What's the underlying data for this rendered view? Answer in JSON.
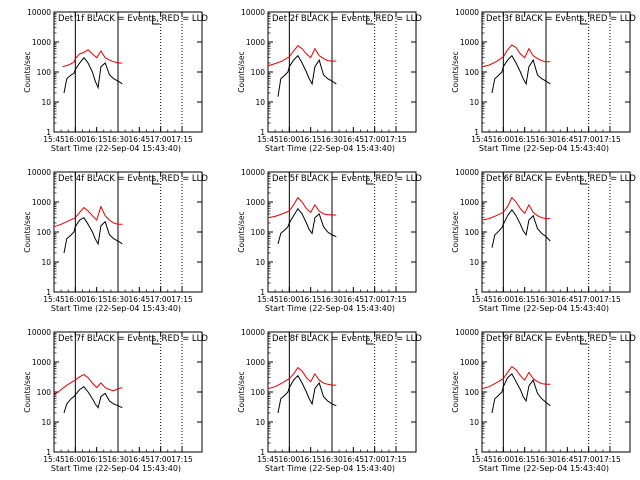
{
  "chart_data": [
    {
      "type": "line",
      "title": "Det 1f BLACK = Events, RED = LLD",
      "xlabel": "Start Time (22-Sep-04 15:43:40)",
      "ylabel": "Counts/sec",
      "x_ticks": [
        "15:45",
        "16:00",
        "16:15",
        "16:30",
        "16:45",
        "17:00",
        "17:15"
      ],
      "y_ticks": [
        "1",
        "10",
        "100",
        "1000",
        "10000"
      ],
      "ylim": [
        1,
        10000
      ],
      "y_scale": "log",
      "vlines_solid": [
        "16:00",
        "16:30"
      ],
      "vlines_dotted": [
        "17:00",
        "17:15"
      ],
      "series": [
        {
          "name": "LLD",
          "color": "#e00000",
          "x": [
            "15:51",
            "15:55",
            "15:59",
            "16:00",
            "16:03",
            "16:06",
            "16:09",
            "16:12",
            "16:15",
            "16:18",
            "16:21",
            "16:24",
            "16:27",
            "16:30",
            "16:33"
          ],
          "values": [
            150,
            170,
            210,
            280,
            400,
            450,
            550,
            400,
            300,
            500,
            300,
            250,
            220,
            200,
            200
          ]
        },
        {
          "name": "Events",
          "color": "#000000",
          "x": [
            "15:52",
            "15:54",
            "15:57",
            "15:59",
            "16:00",
            "16:03",
            "16:06",
            "16:09",
            "16:12",
            "16:14",
            "16:16",
            "16:18",
            "16:21",
            "16:24",
            "16:27",
            "16:30",
            "16:33"
          ],
          "values": [
            20,
            60,
            80,
            90,
            120,
            200,
            300,
            200,
            100,
            50,
            30,
            150,
            200,
            80,
            60,
            50,
            40
          ]
        }
      ]
    },
    {
      "type": "line",
      "title": "Det 2f BLACK = Events, RED = LLD",
      "xlabel": "Start Time (22-Sep-04 15:43:40)",
      "ylabel": "Counts/sec",
      "x_ticks": [
        "15:45",
        "16:00",
        "16:15",
        "16:30",
        "16:45",
        "17:00",
        "17:15"
      ],
      "y_ticks": [
        "1",
        "10",
        "100",
        "1000",
        "10000"
      ],
      "ylim": [
        1,
        10000
      ],
      "y_scale": "log",
      "vlines_solid": [
        "16:00",
        "16:30"
      ],
      "vlines_dotted": [
        "17:00",
        "17:15"
      ],
      "series": [
        {
          "name": "LLD",
          "color": "#e00000",
          "x": [
            "15:45",
            "15:50",
            "15:55",
            "16:00",
            "16:03",
            "16:06",
            "16:09",
            "16:12",
            "16:15",
            "16:18",
            "16:21",
            "16:24",
            "16:27",
            "16:30",
            "16:33"
          ],
          "values": [
            160,
            190,
            230,
            320,
            500,
            750,
            600,
            400,
            300,
            600,
            350,
            280,
            240,
            230,
            230
          ]
        },
        {
          "name": "Events",
          "color": "#000000",
          "x": [
            "15:52",
            "15:54",
            "15:57",
            "15:59",
            "16:00",
            "16:03",
            "16:06",
            "16:09",
            "16:12",
            "16:14",
            "16:16",
            "16:18",
            "16:21",
            "16:24",
            "16:27",
            "16:30",
            "16:33"
          ],
          "values": [
            15,
            60,
            80,
            100,
            150,
            250,
            350,
            200,
            100,
            60,
            40,
            150,
            250,
            80,
            60,
            50,
            40
          ]
        }
      ]
    },
    {
      "type": "line",
      "title": "Det 3f BLACK = Events, RED = LLD",
      "xlabel": "Start Time (22-Sep-04 15:43:40)",
      "ylabel": "Counts/sec",
      "x_ticks": [
        "15:45",
        "16:00",
        "16:15",
        "16:30",
        "16:45",
        "17:00",
        "17:15"
      ],
      "y_ticks": [
        "1",
        "10",
        "100",
        "1000",
        "10000"
      ],
      "ylim": [
        1,
        10000
      ],
      "y_scale": "log",
      "vlines_solid": [
        "16:00",
        "16:30"
      ],
      "vlines_dotted": [
        "17:00",
        "17:15"
      ],
      "series": [
        {
          "name": "LLD",
          "color": "#e00000",
          "x": [
            "15:45",
            "15:50",
            "15:55",
            "16:00",
            "16:03",
            "16:06",
            "16:09",
            "16:12",
            "16:15",
            "16:18",
            "16:21",
            "16:24",
            "16:27",
            "16:30",
            "16:33"
          ],
          "values": [
            150,
            170,
            220,
            320,
            550,
            800,
            650,
            400,
            300,
            600,
            350,
            280,
            240,
            220,
            220
          ]
        },
        {
          "name": "Events",
          "color": "#000000",
          "x": [
            "15:52",
            "15:54",
            "15:57",
            "15:59",
            "16:00",
            "16:03",
            "16:06",
            "16:09",
            "16:12",
            "16:14",
            "16:16",
            "16:18",
            "16:21",
            "16:24",
            "16:27",
            "16:30",
            "16:33"
          ],
          "values": [
            20,
            60,
            80,
            100,
            150,
            250,
            350,
            200,
            100,
            60,
            40,
            150,
            250,
            80,
            60,
            50,
            40
          ]
        }
      ]
    },
    {
      "type": "line",
      "title": "Det 4f BLACK = Events, RED = LLD",
      "xlabel": "Start Time (22-Sep-04 15:43:40)",
      "ylabel": "Counts/sec",
      "x_ticks": [
        "15:45",
        "16:00",
        "16:15",
        "16:30",
        "16:45",
        "17:00",
        "17:15"
      ],
      "y_ticks": [
        "1",
        "10",
        "100",
        "1000",
        "10000"
      ],
      "ylim": [
        1,
        10000
      ],
      "y_scale": "log",
      "vlines_solid": [
        "16:00",
        "16:30"
      ],
      "vlines_dotted": [
        "17:00",
        "17:15"
      ],
      "series": [
        {
          "name": "LLD",
          "color": "#e00000",
          "x": [
            "15:45",
            "15:50",
            "15:55",
            "16:00",
            "16:03",
            "16:06",
            "16:09",
            "16:12",
            "16:15",
            "16:18",
            "16:21",
            "16:24",
            "16:27",
            "16:30",
            "16:33"
          ],
          "values": [
            150,
            180,
            230,
            300,
            450,
            650,
            500,
            350,
            250,
            700,
            350,
            250,
            200,
            180,
            180
          ]
        },
        {
          "name": "Events",
          "color": "#000000",
          "x": [
            "15:52",
            "15:54",
            "15:57",
            "15:59",
            "16:00",
            "16:03",
            "16:06",
            "16:09",
            "16:12",
            "16:14",
            "16:16",
            "16:18",
            "16:21",
            "16:24",
            "16:27",
            "16:30",
            "16:33"
          ],
          "values": [
            20,
            60,
            80,
            100,
            150,
            250,
            300,
            180,
            100,
            60,
            40,
            160,
            220,
            80,
            60,
            50,
            40
          ]
        }
      ]
    },
    {
      "type": "line",
      "title": "Det 5f BLACK = Events, RED = LLD",
      "xlabel": "Start Time (22-Sep-04 15:43:40)",
      "ylabel": "Counts/sec",
      "x_ticks": [
        "15:45",
        "16:00",
        "16:15",
        "16:30",
        "16:45",
        "17:00",
        "17:15"
      ],
      "y_ticks": [
        "1",
        "10",
        "100",
        "1000",
        "10000"
      ],
      "ylim": [
        1,
        10000
      ],
      "y_scale": "log",
      "vlines_solid": [
        "16:00",
        "16:30"
      ],
      "vlines_dotted": [
        "17:00",
        "17:15"
      ],
      "series": [
        {
          "name": "LLD",
          "color": "#e00000",
          "x": [
            "15:45",
            "15:50",
            "15:55",
            "16:00",
            "16:03",
            "16:06",
            "16:09",
            "16:12",
            "16:15",
            "16:18",
            "16:21",
            "16:24",
            "16:27",
            "16:30",
            "16:33"
          ],
          "values": [
            300,
            330,
            400,
            500,
            800,
            1400,
            1000,
            600,
            450,
            800,
            500,
            400,
            380,
            370,
            370
          ]
        },
        {
          "name": "Events",
          "color": "#000000",
          "x": [
            "15:52",
            "15:54",
            "15:57",
            "15:59",
            "16:00",
            "16:03",
            "16:06",
            "16:09",
            "16:12",
            "16:14",
            "16:16",
            "16:18",
            "16:21",
            "16:24",
            "16:27",
            "16:30",
            "16:33"
          ],
          "values": [
            40,
            90,
            120,
            150,
            200,
            350,
            600,
            400,
            200,
            120,
            90,
            300,
            400,
            150,
            100,
            80,
            70
          ]
        }
      ]
    },
    {
      "type": "line",
      "title": "Det 6f BLACK = Events, RED = LLD",
      "xlabel": "Start Time (22-Sep-04 15:43:40)",
      "ylabel": "Counts/sec",
      "x_ticks": [
        "15:45",
        "16:00",
        "16:15",
        "16:30",
        "16:45",
        "17:00",
        "17:15"
      ],
      "y_ticks": [
        "1",
        "10",
        "100",
        "1000",
        "10000"
      ],
      "ylim": [
        1,
        10000
      ],
      "y_scale": "log",
      "vlines_solid": [
        "16:00",
        "16:30"
      ],
      "vlines_dotted": [
        "17:00",
        "17:15"
      ],
      "series": [
        {
          "name": "LLD",
          "color": "#e00000",
          "x": [
            "15:45",
            "15:50",
            "15:55",
            "16:00",
            "16:03",
            "16:06",
            "16:09",
            "16:12",
            "16:15",
            "16:18",
            "16:21",
            "16:24",
            "16:27",
            "16:30",
            "16:33"
          ],
          "values": [
            250,
            280,
            350,
            450,
            700,
            1400,
            1000,
            600,
            420,
            800,
            450,
            350,
            300,
            280,
            280
          ]
        },
        {
          "name": "Events",
          "color": "#000000",
          "x": [
            "15:52",
            "15:54",
            "15:57",
            "15:59",
            "16:00",
            "16:03",
            "16:06",
            "16:09",
            "16:12",
            "16:14",
            "16:16",
            "16:18",
            "16:21",
            "16:24",
            "16:27",
            "16:30",
            "16:33"
          ],
          "values": [
            30,
            80,
            110,
            140,
            180,
            350,
            550,
            350,
            180,
            110,
            80,
            250,
            350,
            130,
            90,
            70,
            50
          ]
        }
      ]
    },
    {
      "type": "line",
      "title": "Det 7f BLACK = Events, RED = LLD",
      "xlabel": "Start Time (22-Sep-04 15:43:40)",
      "ylabel": "Counts/sec",
      "x_ticks": [
        "15:45",
        "16:00",
        "16:15",
        "16:30",
        "16:45",
        "17:00",
        "17:15"
      ],
      "y_ticks": [
        "1",
        "10",
        "100",
        "1000",
        "10000"
      ],
      "ylim": [
        1,
        10000
      ],
      "y_scale": "log",
      "vlines_solid": [
        "16:00",
        "16:30"
      ],
      "vlines_dotted": [
        "17:00",
        "17:15"
      ],
      "series": [
        {
          "name": "LLD",
          "color": "#e00000",
          "x": [
            "15:45",
            "15:50",
            "15:55",
            "16:00",
            "16:03",
            "16:06",
            "16:09",
            "16:12",
            "16:15",
            "16:18",
            "16:21",
            "16:24",
            "16:27",
            "16:30",
            "16:33"
          ],
          "values": [
            80,
            120,
            180,
            250,
            320,
            380,
            300,
            200,
            140,
            200,
            140,
            120,
            110,
            130,
            140
          ]
        },
        {
          "name": "Events",
          "color": "#000000",
          "x": [
            "15:52",
            "15:54",
            "15:57",
            "15:59",
            "16:00",
            "16:03",
            "16:06",
            "16:09",
            "16:12",
            "16:14",
            "16:16",
            "16:18",
            "16:21",
            "16:24",
            "16:27",
            "16:30",
            "16:33"
          ],
          "values": [
            20,
            40,
            60,
            70,
            80,
            120,
            150,
            100,
            60,
            40,
            30,
            70,
            90,
            50,
            40,
            35,
            30
          ]
        }
      ]
    },
    {
      "type": "line",
      "title": "Det 8f BLACK = Events, RED = LLD",
      "xlabel": "Start Time (22-Sep-04 15:43:40)",
      "ylabel": "Counts/sec",
      "x_ticks": [
        "15:45",
        "16:00",
        "16:15",
        "16:30",
        "16:45",
        "17:00",
        "17:15"
      ],
      "y_ticks": [
        "1",
        "10",
        "100",
        "1000",
        "10000"
      ],
      "ylim": [
        1,
        10000
      ],
      "y_scale": "log",
      "vlines_solid": [
        "16:00",
        "16:30"
      ],
      "vlines_dotted": [
        "17:00",
        "17:15"
      ],
      "series": [
        {
          "name": "LLD",
          "color": "#e00000",
          "x": [
            "15:45",
            "15:50",
            "15:55",
            "16:00",
            "16:03",
            "16:06",
            "16:09",
            "16:12",
            "16:15",
            "16:18",
            "16:21",
            "16:24",
            "16:27",
            "16:30",
            "16:33"
          ],
          "values": [
            130,
            150,
            200,
            280,
            400,
            650,
            500,
            300,
            220,
            400,
            250,
            200,
            180,
            170,
            170
          ]
        },
        {
          "name": "Events",
          "color": "#000000",
          "x": [
            "15:52",
            "15:54",
            "15:57",
            "15:59",
            "16:00",
            "16:03",
            "16:06",
            "16:09",
            "16:12",
            "16:14",
            "16:16",
            "16:18",
            "16:21",
            "16:24",
            "16:27",
            "16:30",
            "16:33"
          ],
          "values": [
            20,
            60,
            80,
            100,
            140,
            250,
            350,
            200,
            100,
            60,
            40,
            130,
            200,
            70,
            50,
            40,
            35
          ]
        }
      ]
    },
    {
      "type": "line",
      "title": "Det 9f BLACK = Events, RED = LLD",
      "xlabel": "Start Time (22-Sep-04 15:43:40)",
      "ylabel": "Counts/sec",
      "x_ticks": [
        "15:45",
        "16:00",
        "16:15",
        "16:30",
        "16:45",
        "17:00",
        "17:15"
      ],
      "y_ticks": [
        "1",
        "10",
        "100",
        "1000",
        "10000"
      ],
      "ylim": [
        1,
        10000
      ],
      "y_scale": "log",
      "vlines_solid": [
        "16:00",
        "16:30"
      ],
      "vlines_dotted": [
        "17:00",
        "17:15"
      ],
      "series": [
        {
          "name": "LLD",
          "color": "#e00000",
          "x": [
            "15:45",
            "15:50",
            "15:55",
            "16:00",
            "16:03",
            "16:06",
            "16:09",
            "16:12",
            "16:15",
            "16:18",
            "16:21",
            "16:24",
            "16:27",
            "16:30",
            "16:33"
          ],
          "values": [
            130,
            150,
            200,
            280,
            450,
            700,
            550,
            350,
            250,
            450,
            280,
            220,
            190,
            180,
            180
          ]
        },
        {
          "name": "Events",
          "color": "#000000",
          "x": [
            "15:52",
            "15:54",
            "15:57",
            "15:59",
            "16:00",
            "16:03",
            "16:06",
            "16:09",
            "16:12",
            "16:14",
            "16:16",
            "16:18",
            "16:21",
            "16:24",
            "16:27",
            "16:30",
            "16:33"
          ],
          "values": [
            20,
            60,
            80,
            100,
            150,
            300,
            400,
            220,
            120,
            70,
            50,
            160,
            250,
            90,
            60,
            45,
            35
          ]
        }
      ]
    }
  ]
}
